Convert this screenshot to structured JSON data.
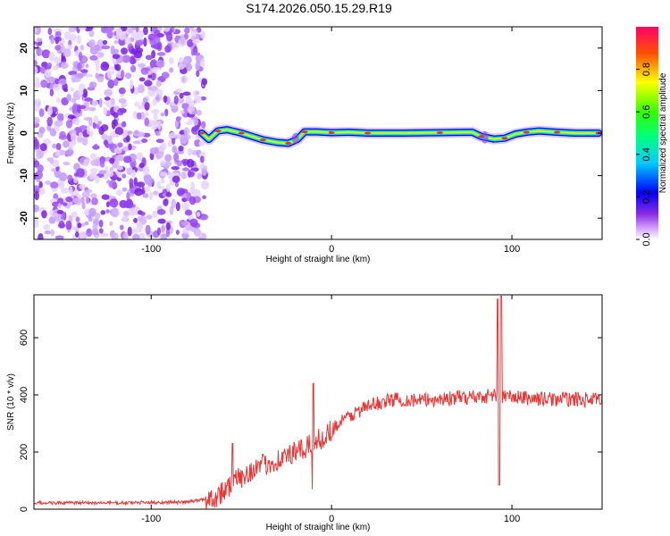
{
  "title": "S174.2026.050.15.29.R19",
  "chart_data": [
    {
      "type": "heatmap",
      "xlabel": "Height of straight line (km)",
      "ylabel": "Frequency (Hz)",
      "xlim": [
        -165,
        150
      ],
      "ylim": [
        -25,
        25
      ],
      "xticks": [
        -100,
        0,
        100
      ],
      "yticks": [
        -20,
        -10,
        0,
        10,
        20
      ],
      "colorbar": {
        "label": "Normalized spectral amplitude",
        "range": [
          0,
          1
        ],
        "ticks": [
          0.0,
          0.2,
          0.4,
          0.6,
          0.8
        ]
      },
      "noise_region_x": [
        -165,
        -73
      ],
      "ridge": [
        {
          "x": -72,
          "y": 0
        },
        {
          "x": -68,
          "y": -1.5
        },
        {
          "x": -63,
          "y": 0.5
        },
        {
          "x": -58,
          "y": 0.8
        },
        {
          "x": -50,
          "y": 0
        },
        {
          "x": -44,
          "y": -0.8
        },
        {
          "x": -38,
          "y": -1.6
        },
        {
          "x": -30,
          "y": -2.2
        },
        {
          "x": -24,
          "y": -2.4
        },
        {
          "x": -19,
          "y": -1.5
        },
        {
          "x": -15,
          "y": 0.3
        },
        {
          "x": -8,
          "y": 0.3
        },
        {
          "x": 0,
          "y": 0.1
        },
        {
          "x": 10,
          "y": 0.2
        },
        {
          "x": 20,
          "y": 0
        },
        {
          "x": 40,
          "y": 0
        },
        {
          "x": 60,
          "y": 0.1
        },
        {
          "x": 78,
          "y": 0.2
        },
        {
          "x": 83,
          "y": -0.8
        },
        {
          "x": 90,
          "y": -1.4
        },
        {
          "x": 96,
          "y": -1.2
        },
        {
          "x": 102,
          "y": -0.2
        },
        {
          "x": 108,
          "y": 0.2
        },
        {
          "x": 115,
          "y": 0.5
        },
        {
          "x": 125,
          "y": 0.2
        },
        {
          "x": 135,
          "y": 0
        },
        {
          "x": 148,
          "y": 0
        }
      ]
    },
    {
      "type": "line",
      "xlabel": "Height of straight line (km)",
      "ylabel": "SNR (10 * v/v)",
      "xlim": [
        -165,
        150
      ],
      "ylim": [
        0,
        750
      ],
      "xticks": [
        -100,
        0,
        100
      ],
      "yticks": [
        0,
        200,
        400,
        600
      ],
      "color": "#ee3333",
      "x": [
        -165,
        -120,
        -80,
        -65,
        -55,
        -45,
        -35,
        -25,
        -15,
        -5,
        5,
        15,
        25,
        35,
        50,
        70,
        85,
        90,
        95,
        105,
        120,
        135,
        150
      ],
      "values": [
        22,
        22,
        25,
        40,
        90,
        135,
        160,
        185,
        210,
        250,
        305,
        345,
        370,
        385,
        380,
        390,
        395,
        400,
        395,
        390,
        385,
        385,
        380
      ],
      "spikes": [
        {
          "x": -55,
          "y": 230
        },
        {
          "x": -54,
          "y": 120
        },
        {
          "x": -10,
          "y": 440
        },
        {
          "x": -10.5,
          "y": 70
        },
        {
          "x": 92,
          "y": 735
        },
        {
          "x": 93,
          "y": 85
        },
        {
          "x": 94,
          "y": 745
        }
      ]
    }
  ]
}
